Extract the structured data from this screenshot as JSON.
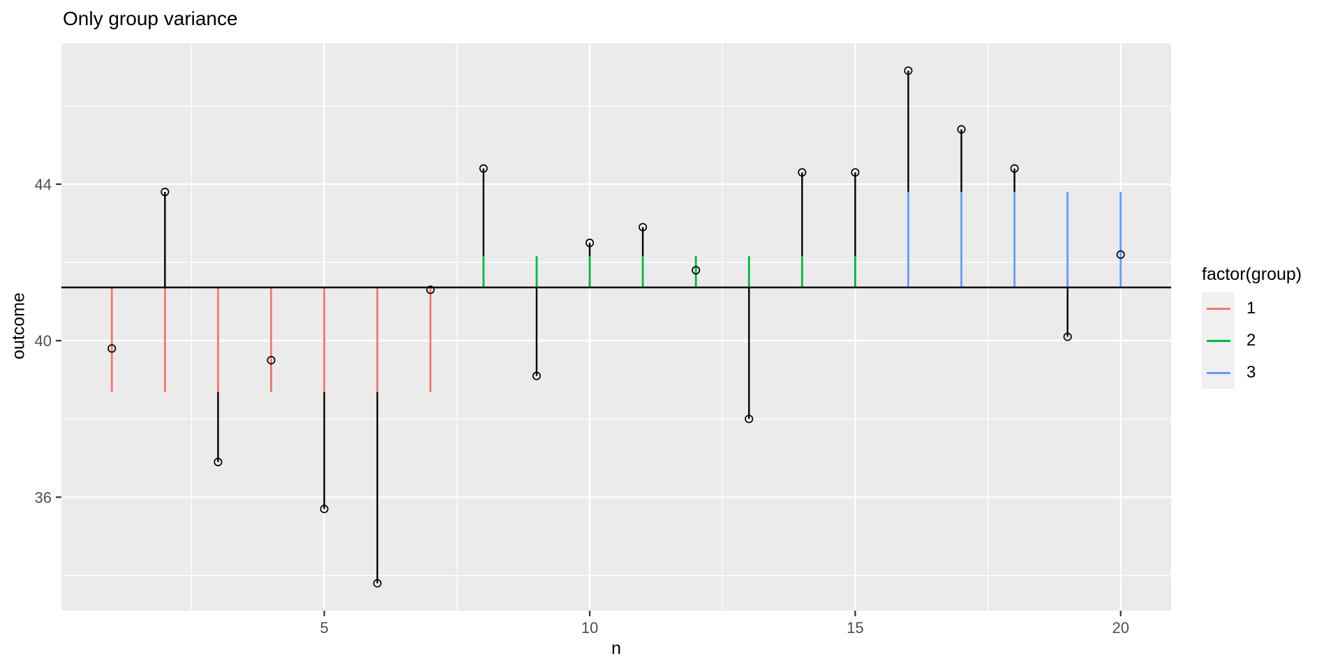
{
  "title": "Only group variance",
  "axes": {
    "x": {
      "label": "n",
      "ticks": [
        5,
        10,
        15,
        20
      ],
      "minor": [
        2.5,
        7.5,
        12.5,
        17.5
      ]
    },
    "y": {
      "label": "outcome",
      "ticks": [
        36,
        40,
        44
      ],
      "minor": [
        34,
        38,
        42,
        46
      ]
    }
  },
  "legend": {
    "title": "factor(group)",
    "items": [
      {
        "label": "1",
        "color": "#F8766D"
      },
      {
        "label": "2",
        "color": "#00BA38"
      },
      {
        "label": "3",
        "color": "#619CFF"
      }
    ]
  },
  "styles": {
    "panel_bg": "#EBEBEB",
    "grid_color": "#FFFFFF",
    "tick_label_color": "#4D4D4D",
    "segment_black": "#000000"
  },
  "chart_data": {
    "type": "scatter",
    "title": "Only group variance",
    "xlabel": "n",
    "ylabel": "outcome",
    "xlim": [
      0.05,
      20.95
    ],
    "ylim": [
      33.1,
      47.6
    ],
    "grand_mean": 41.36,
    "group_means": {
      "1": 38.69,
      "2": 42.16,
      "3": 43.8
    },
    "legend_position": "right",
    "description": "Open-circle data points with black residual segments from each point to its group mean, colored segments from the grand mean line to each group mean, and a horizontal black grand-mean line.",
    "points": [
      {
        "n": 1,
        "outcome": 39.8,
        "group": 1
      },
      {
        "n": 2,
        "outcome": 43.8,
        "group": 1
      },
      {
        "n": 3,
        "outcome": 36.9,
        "group": 1
      },
      {
        "n": 4,
        "outcome": 39.5,
        "group": 1
      },
      {
        "n": 5,
        "outcome": 35.7,
        "group": 1
      },
      {
        "n": 6,
        "outcome": 33.8,
        "group": 1
      },
      {
        "n": 7,
        "outcome": 41.3,
        "group": 1
      },
      {
        "n": 8,
        "outcome": 44.4,
        "group": 2
      },
      {
        "n": 9,
        "outcome": 39.1,
        "group": 2
      },
      {
        "n": 10,
        "outcome": 42.5,
        "group": 2
      },
      {
        "n": 11,
        "outcome": 42.9,
        "group": 2
      },
      {
        "n": 12,
        "outcome": 41.8,
        "group": 2
      },
      {
        "n": 13,
        "outcome": 38.0,
        "group": 2
      },
      {
        "n": 14,
        "outcome": 44.3,
        "group": 2
      },
      {
        "n": 15,
        "outcome": 44.3,
        "group": 2
      },
      {
        "n": 16,
        "outcome": 46.9,
        "group": 3
      },
      {
        "n": 17,
        "outcome": 45.4,
        "group": 3
      },
      {
        "n": 18,
        "outcome": 44.4,
        "group": 3
      },
      {
        "n": 19,
        "outcome": 40.1,
        "group": 3
      },
      {
        "n": 20,
        "outcome": 42.2,
        "group": 3
      }
    ]
  }
}
